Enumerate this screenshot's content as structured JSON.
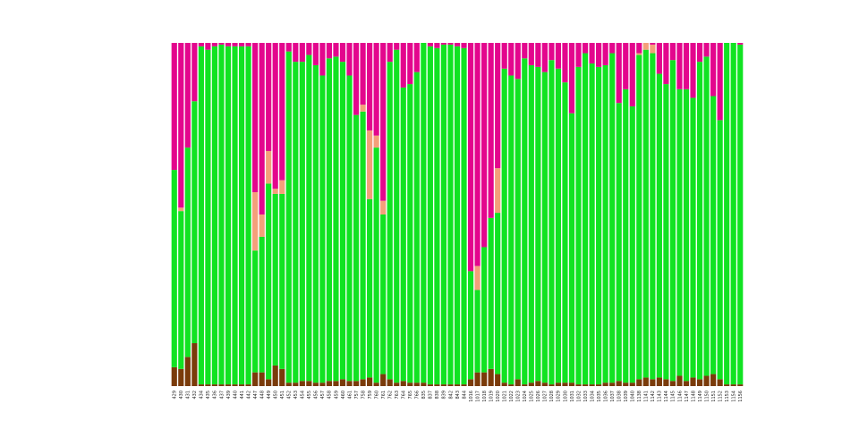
{
  "chart_data": {
    "type": "bar",
    "stacked": true,
    "normalized": true,
    "title": "",
    "xlabel": "",
    "ylabel": "",
    "ylim": [
      0,
      1
    ],
    "grid": false,
    "legend": "none",
    "colors": {
      "s1": "#7a3b0a",
      "s2": "#11e322",
      "s3": "#f4a07a",
      "s4": "#e3068d"
    },
    "categories": [
      "429",
      "430",
      "431",
      "432",
      "434",
      "435",
      "436",
      "437",
      "439",
      "440",
      "441",
      "442",
      "447",
      "448",
      "449",
      "450",
      "451",
      "452",
      "453",
      "454",
      "455",
      "456",
      "457",
      "458",
      "459",
      "460",
      "461",
      "757",
      "758",
      "759",
      "760",
      "761",
      "762",
      "763",
      "764",
      "765",
      "766",
      "835",
      "837",
      "838",
      "839",
      "842",
      "843",
      "844",
      "1016",
      "1017",
      "1018",
      "1019",
      "1020",
      "1021",
      "1022",
      "1023",
      "1024",
      "1025",
      "1026",
      "1027",
      "1028",
      "1029",
      "1030",
      "1031",
      "1032",
      "1033",
      "1034",
      "1035",
      "1036",
      "1037",
      "1038",
      "1039",
      "1040",
      "1138",
      "1141",
      "1142",
      "1143",
      "1144",
      "1145",
      "1146",
      "1147",
      "1148",
      "1149",
      "1150",
      "1151",
      "1152",
      "1153",
      "1154",
      "1156"
    ],
    "series": [
      {
        "name": "s1",
        "values": [
          0.055,
          0.05,
          0.085,
          0.125,
          0.005,
          0.005,
          0.005,
          0.005,
          0.005,
          0.005,
          0.005,
          0.005,
          0.04,
          0.04,
          0.02,
          0.06,
          0.05,
          0.01,
          0.01,
          0.015,
          0.015,
          0.01,
          0.01,
          0.015,
          0.015,
          0.02,
          0.015,
          0.015,
          0.02,
          0.025,
          0.01,
          0.035,
          0.02,
          0.01,
          0.015,
          0.01,
          0.01,
          0.01,
          0.005,
          0.005,
          0.005,
          0.005,
          0.005,
          0.005,
          0.02,
          0.04,
          0.04,
          0.05,
          0.035,
          0.01,
          0.005,
          0.02,
          0.005,
          0.01,
          0.015,
          0.01,
          0.005,
          0.01,
          0.01,
          0.01,
          0.005,
          0.005,
          0.005,
          0.005,
          0.01,
          0.01,
          0.015,
          0.01,
          0.01,
          0.02,
          0.025,
          0.02,
          0.025,
          0.02,
          0.015,
          0.03,
          0.015,
          0.025,
          0.02,
          0.03,
          0.035,
          0.02,
          0.005,
          0.005,
          0.005
        ]
      },
      {
        "name": "s2",
        "values": [
          0.575,
          0.46,
          0.61,
          0.705,
          0.985,
          0.975,
          0.985,
          0.99,
          0.985,
          0.985,
          0.985,
          0.985,
          0.355,
          0.395,
          0.57,
          0.5,
          0.51,
          0.965,
          0.935,
          0.93,
          0.95,
          0.925,
          0.895,
          0.94,
          0.945,
          0.925,
          0.89,
          0.775,
          0.78,
          0.52,
          0.685,
          0.465,
          0.925,
          0.97,
          0.855,
          0.87,
          0.905,
          0.99,
          0.985,
          0.98,
          0.99,
          0.99,
          0.985,
          0.98,
          0.315,
          0.24,
          0.365,
          0.44,
          0.47,
          0.915,
          0.9,
          0.875,
          0.95,
          0.925,
          0.915,
          0.905,
          0.945,
          0.915,
          0.875,
          0.785,
          0.925,
          0.965,
          0.935,
          0.925,
          0.925,
          0.96,
          0.81,
          0.855,
          0.805,
          0.945,
          0.955,
          0.95,
          0.885,
          0.86,
          0.935,
          0.835,
          0.85,
          0.815,
          0.925,
          0.93,
          0.81,
          0.755,
          0.995,
          0.995,
          0.99
        ]
      },
      {
        "name": "s3",
        "values": [
          0.0,
          0.01,
          0.0,
          0.0,
          0.0,
          0.0,
          0.0,
          0.0,
          0.0,
          0.0,
          0.0,
          0.0,
          0.17,
          0.065,
          0.095,
          0.015,
          0.04,
          0.0,
          0.0,
          0.0,
          0.0,
          0.0,
          0.0,
          0.0,
          0.0,
          0.0,
          0.0,
          0.0,
          0.02,
          0.2,
          0.035,
          0.04,
          0.0,
          0.0,
          0.0,
          0.0,
          0.0,
          0.0,
          0.0,
          0.0,
          0.0,
          0.0,
          0.0,
          0.0,
          0.0,
          0.07,
          0.0,
          0.0,
          0.13,
          0.0,
          0.0,
          0.0,
          0.0,
          0.0,
          0.0,
          0.0,
          0.0,
          0.0,
          0.0,
          0.0,
          0.0,
          0.0,
          0.0,
          0.0,
          0.0,
          0.0,
          0.0,
          0.0,
          0.0,
          0.005,
          0.02,
          0.025,
          0.0,
          0.0,
          0.0,
          0.0,
          0.0,
          0.0,
          0.0,
          0.0,
          0.0,
          0.0,
          0.0,
          0.0,
          0.0
        ]
      },
      {
        "name": "s4",
        "values": [
          0.37,
          0.48,
          0.305,
          0.17,
          0.01,
          0.02,
          0.01,
          0.005,
          0.01,
          0.01,
          0.01,
          0.01,
          0.435,
          0.5,
          0.315,
          0.425,
          0.4,
          0.025,
          0.055,
          0.055,
          0.035,
          0.065,
          0.095,
          0.045,
          0.04,
          0.055,
          0.095,
          0.21,
          0.18,
          0.255,
          0.27,
          0.46,
          0.055,
          0.02,
          0.13,
          0.12,
          0.085,
          0.0,
          0.01,
          0.015,
          0.005,
          0.005,
          0.01,
          0.015,
          0.665,
          0.65,
          0.595,
          0.51,
          0.365,
          0.075,
          0.095,
          0.105,
          0.045,
          0.065,
          0.07,
          0.085,
          0.05,
          0.075,
          0.115,
          0.205,
          0.07,
          0.03,
          0.06,
          0.07,
          0.065,
          0.03,
          0.175,
          0.135,
          0.185,
          0.03,
          0.0,
          0.005,
          0.09,
          0.12,
          0.05,
          0.135,
          0.135,
          0.16,
          0.055,
          0.04,
          0.155,
          0.225,
          0.0,
          0.0,
          0.005
        ]
      }
    ]
  }
}
